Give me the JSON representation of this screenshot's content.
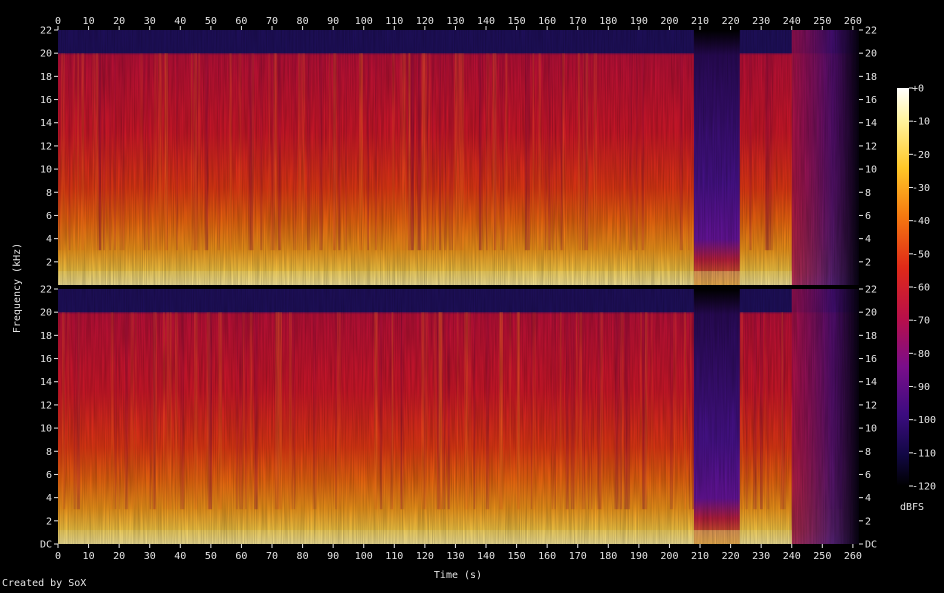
{
  "chart_data": {
    "type": "heatmap",
    "subtype": "spectrogram",
    "channels": 2,
    "xlabel": "Time (s)",
    "ylabel": "Frequency (kHz)",
    "xlim": [
      0,
      262
    ],
    "ylim": [
      0,
      22
    ],
    "x_ticks": [
      "0",
      "10",
      "20",
      "30",
      "40",
      "50",
      "60",
      "70",
      "80",
      "90",
      "100",
      "110",
      "120",
      "130",
      "140",
      "150",
      "160",
      "170",
      "180",
      "190",
      "200",
      "210",
      "220",
      "230",
      "240",
      "250",
      "260"
    ],
    "y_ticks_top": [
      "22",
      "20",
      "18",
      "16",
      "14",
      "12",
      "10",
      "8",
      "6",
      "4",
      "2"
    ],
    "y_ticks_bottom": [
      "22",
      "20",
      "18",
      "16",
      "14",
      "12",
      "10",
      "8",
      "6",
      "4",
      "2",
      "DC"
    ],
    "colorbar": {
      "label": "dBFS",
      "range": [
        -120,
        0
      ],
      "ticks": [
        "+0",
        "-10",
        "-20",
        "-30",
        "-40",
        "-50",
        "-60",
        "-70",
        "-80",
        "-90",
        "-100",
        "-110",
        "-120"
      ]
    },
    "notes_levels": {
      "lowpass_cutoff_khz": 20,
      "quiet_section_seconds": [
        208,
        223
      ],
      "fadeout_seconds": [
        240,
        262
      ]
    }
  },
  "footer": {
    "credit": "Created by SoX"
  },
  "colors": {
    "background": "#000000",
    "text": "#e6e6e6"
  }
}
